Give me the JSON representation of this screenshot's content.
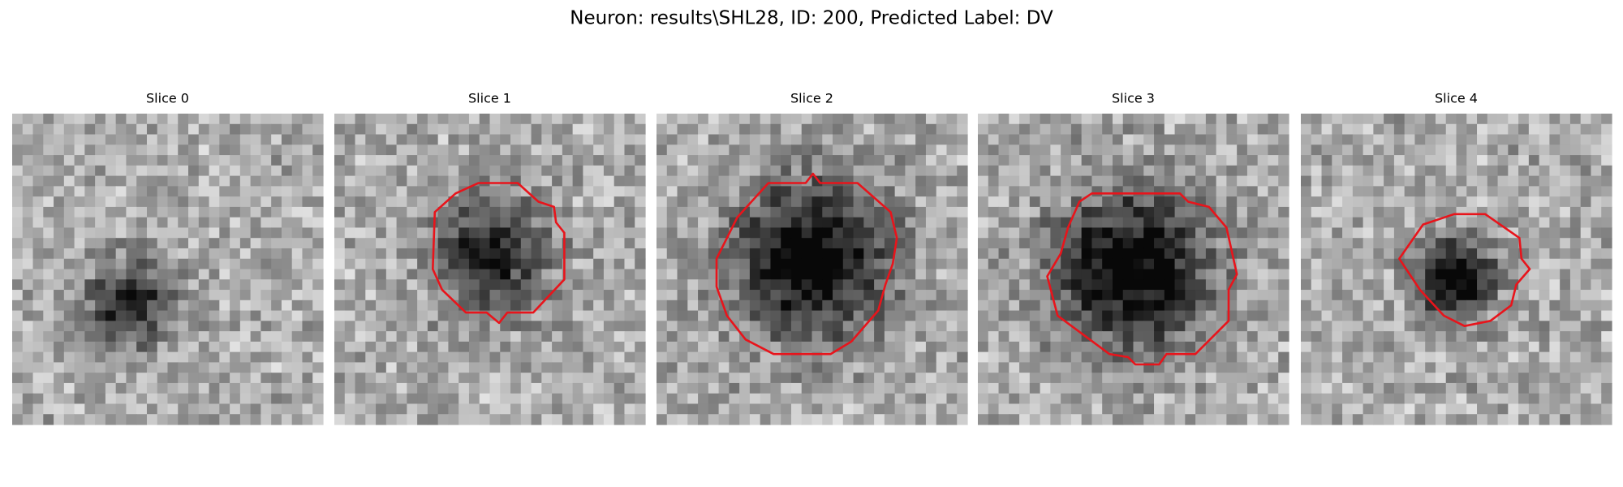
{
  "title": "Neuron: results\\SHL28, ID: 200, Predicted Label: DV",
  "panels": [
    {
      "title": "Slice 0"
    },
    {
      "title": "Slice 1"
    },
    {
      "title": "Slice 2"
    },
    {
      "title": "Slice 3"
    },
    {
      "title": "Slice 4"
    }
  ]
}
